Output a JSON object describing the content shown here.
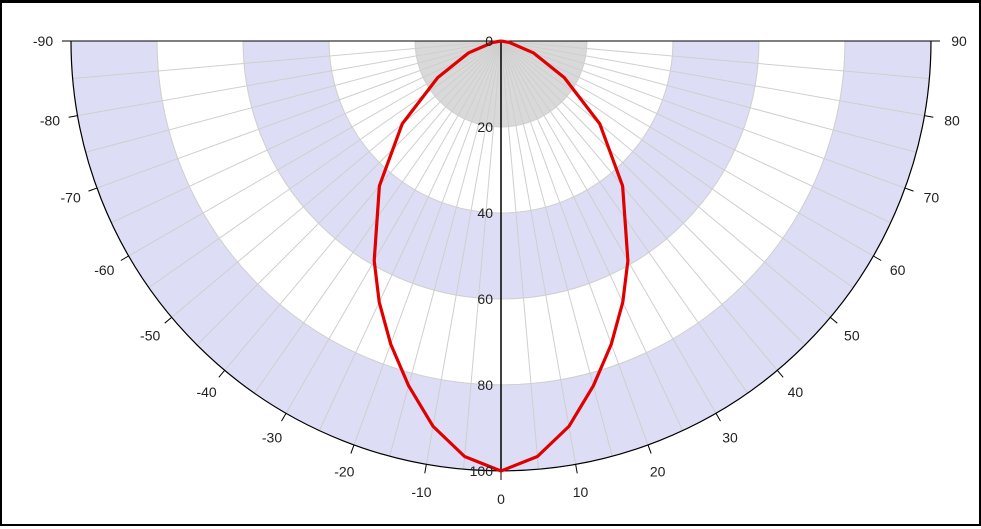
{
  "chart_data": {
    "type": "polar-line",
    "title": "",
    "angle_range": [
      -90,
      90
    ],
    "angle_ticks": [
      -90,
      -80,
      -70,
      -60,
      -50,
      -40,
      -30,
      -20,
      -10,
      0,
      10,
      20,
      30,
      40,
      50,
      60,
      70,
      80,
      90
    ],
    "angle_tick_labels": [
      "-90",
      "-80",
      "-70",
      "-60",
      "-50",
      "-40",
      "-30",
      "-20",
      "-10",
      "0",
      "10",
      "20",
      "30",
      "40",
      "50",
      "60",
      "70",
      "80",
      "90"
    ],
    "radial_range": [
      0,
      100
    ],
    "radial_ticks": [
      0,
      20,
      40,
      60,
      80,
      100
    ],
    "radial_tick_labels": [
      "0",
      "20",
      "40",
      "60",
      "80",
      "100"
    ],
    "radial_orientation": "zero at top, increasing downward",
    "bands": [
      "#d9d9d9",
      "#ffffff",
      "#dddef5",
      "#ffffff",
      "#dddef5"
    ],
    "grid": true,
    "series": [
      {
        "color": "#e00000",
        "angles": [
          -90,
          -80,
          -70,
          -60,
          -50,
          -40,
          -30,
          -25,
          -20,
          -15,
          -10,
          -5,
          0,
          5,
          10,
          15,
          20,
          25,
          30,
          40,
          50,
          60,
          70,
          80,
          90
        ],
        "values": [
          0,
          2,
          8,
          17,
          30,
          44,
          59,
          67,
          75,
          83,
          91,
          97,
          100,
          97,
          91,
          83,
          75,
          67,
          59,
          44,
          30,
          17,
          8,
          2,
          0
        ]
      }
    ]
  }
}
